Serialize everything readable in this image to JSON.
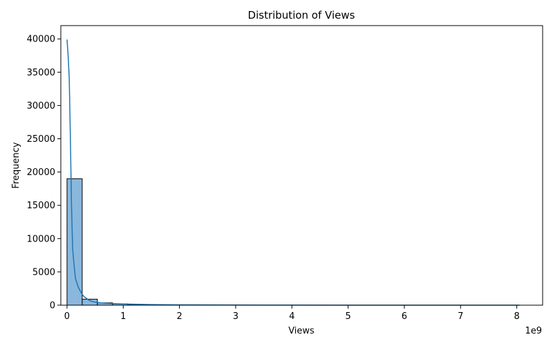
{
  "chart_data": {
    "type": "bar",
    "title": "Distribution of Views",
    "xlabel": "Views",
    "ylabel": "Frequency",
    "x_offset_label": "1e9",
    "xlim": [
      -0.11,
      8.46
    ],
    "ylim": [
      0,
      42000
    ],
    "x_ticks": [
      0,
      1,
      2,
      3,
      4,
      5,
      6,
      7,
      8
    ],
    "x_tick_labels": [
      "0",
      "1",
      "2",
      "3",
      "4",
      "5",
      "6",
      "7",
      "8"
    ],
    "y_ticks": [
      0,
      5000,
      10000,
      15000,
      20000,
      25000,
      30000,
      35000,
      40000
    ],
    "y_tick_labels": [
      "0",
      "5000",
      "10000",
      "15000",
      "20000",
      "25000",
      "30000",
      "35000",
      "40000"
    ],
    "bin_width": 0.27,
    "bin_starts": [
      0,
      0.27,
      0.54,
      0.81,
      1.08,
      1.35,
      1.62,
      1.89
    ],
    "values": [
      19000,
      900,
      350,
      200,
      120,
      70,
      40,
      25
    ],
    "kde": {
      "x": [
        0,
        0.02,
        0.04,
        0.06,
        0.08,
        0.1,
        0.12,
        0.15,
        0.2,
        0.25,
        0.3,
        0.4,
        0.5,
        0.6,
        0.8,
        1.0,
        1.5,
        2.0,
        3.0,
        4.0,
        5.0,
        6.0,
        7.0,
        8.05
      ],
      "y": [
        39900,
        37500,
        34000,
        25000,
        15000,
        8500,
        6500,
        4000,
        2700,
        1900,
        1300,
        700,
        450,
        350,
        250,
        180,
        90,
        50,
        20,
        10,
        5,
        3,
        2,
        1
      ]
    },
    "colors": {
      "bar_fill": "#8ab8dd",
      "bar_edge": "#000000",
      "kde_line": "#1f77b4"
    },
    "grid": false,
    "legend": "none"
  }
}
